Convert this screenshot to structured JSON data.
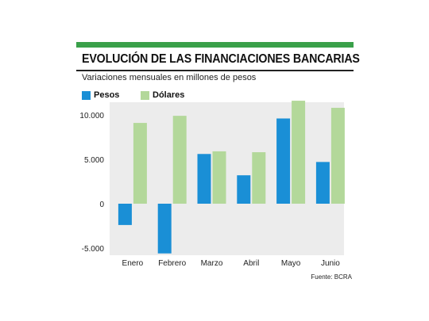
{
  "chart_data": {
    "type": "bar",
    "title": "EVOLUCIÓN DE LAS FINANCIACIONES BANCARIAS",
    "subtitle": "Variaciones mensuales en millones de pesos",
    "source": "Fuente: BCRA",
    "categories": [
      "Enero",
      "Febrero",
      "Marzo",
      "Abril",
      "Mayo",
      "Junio"
    ],
    "series": [
      {
        "name": "Pesos",
        "color": "#1a8fd6",
        "values": [
          -2400,
          -5600,
          5600,
          3200,
          9600,
          4700
        ]
      },
      {
        "name": "Dólares",
        "color": "#b3d89a",
        "values": [
          9100,
          9900,
          5900,
          5800,
          11600,
          10800
        ]
      }
    ],
    "yticks": [
      10000,
      5000,
      0,
      -5000
    ],
    "ytick_labels": [
      "10.000",
      "5.000",
      "0",
      "-5.000"
    ],
    "ylim": [
      -5500,
      12000
    ],
    "grid": false,
    "legend": "top-left",
    "background": "#ffffff",
    "panel_color": "#ececec",
    "accent": "#3aa04a"
  }
}
